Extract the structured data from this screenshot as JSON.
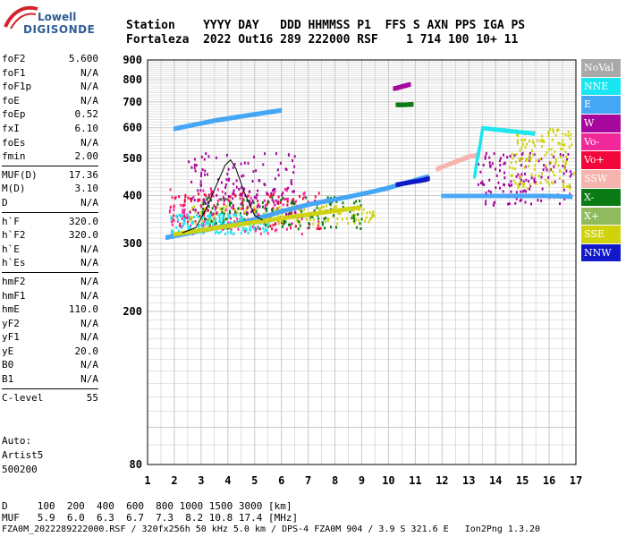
{
  "logo": {
    "line1": "Lowell",
    "line2": "DIGISONDE"
  },
  "header": {
    "row1": "Station    YYYY DAY   DDD HHMMSS P1  FFS S AXN PPS IGA PS",
    "row2": "Fortaleza  2022 Out16 289 222000 RSF    1 714 100 10+ 11"
  },
  "params": {
    "group1": [
      {
        "name": "foF2",
        "value": "5.600"
      },
      {
        "name": "foF1",
        "value": "N/A"
      },
      {
        "name": "foF1p",
        "value": "N/A"
      },
      {
        "name": "foE",
        "value": "N/A"
      },
      {
        "name": "foEp",
        "value": "0.52"
      },
      {
        "name": "fxI",
        "value": "6.10"
      },
      {
        "name": "foEs",
        "value": "N/A"
      },
      {
        "name": "fmin",
        "value": "2.00"
      }
    ],
    "group2": [
      {
        "name": "MUF(D)",
        "value": "17.36"
      },
      {
        "name": "M(D)",
        "value": "3.10"
      },
      {
        "name": "D",
        "value": "N/A"
      }
    ],
    "group3": [
      {
        "name": "h`F",
        "value": "320.0"
      },
      {
        "name": "h`F2",
        "value": "320.0"
      },
      {
        "name": "h`E",
        "value": "N/A"
      },
      {
        "name": "h`Es",
        "value": "N/A"
      }
    ],
    "group4": [
      {
        "name": "hmF2",
        "value": "N/A"
      },
      {
        "name": "hmF1",
        "value": "N/A"
      },
      {
        "name": "hmE",
        "value": "110.0"
      },
      {
        "name": "yF2",
        "value": "N/A"
      },
      {
        "name": "yF1",
        "value": "N/A"
      },
      {
        "name": "yE",
        "value": "20.0"
      },
      {
        "name": "B0",
        "value": "N/A"
      },
      {
        "name": "B1",
        "value": "N/A"
      }
    ],
    "group5": [
      {
        "name": "C-level",
        "value": "55"
      }
    ]
  },
  "auto": {
    "line1": "Auto:",
    "line2": "Artist5",
    "line3": "500200"
  },
  "legend": [
    {
      "label": "NoVal",
      "color": "#a9a9a9"
    },
    {
      "label": "NNE",
      "color": "#19e6f0"
    },
    {
      "label": "E",
      "color": "#45a6f5"
    },
    {
      "label": "W",
      "color": "#a6089e"
    },
    {
      "label": "Vo-",
      "color": "#f0289a"
    },
    {
      "label": "Vo+",
      "color": "#f2073a"
    },
    {
      "label": "SSW",
      "color": "#f5b4ad"
    },
    {
      "label": "X-",
      "color": "#0a7a14"
    },
    {
      "label": "X+",
      "color": "#8fba5d"
    },
    {
      "label": "SSE",
      "color": "#d0d20c"
    },
    {
      "label": "NNW",
      "color": "#1119c8"
    }
  ],
  "bottom": {
    "d_row": "D     100  200  400  600  800 1000 1500 3000 [km]",
    "muf_row": "MUF   5.9  6.0  6.3  6.7  7.3  8.2 10.8 17.4 [MHz]",
    "footer": "FZA0M_2022289222000.RSF / 320fx256h 50 kHz 5.0 km / DPS-4 FZA0M 904 / 3.9 S 321.6 E   Ion2Png 1.3.20"
  },
  "chart_data": {
    "type": "scatter",
    "xlim": [
      1,
      17
    ],
    "ylim": [
      80,
      900
    ],
    "y_scale": "log",
    "x_ticks": [
      1,
      2,
      3,
      4,
      5,
      6,
      7,
      8,
      9,
      10,
      11,
      12,
      13,
      14,
      15,
      16,
      17
    ],
    "y_ticks": [
      80,
      200,
      300,
      400,
      500,
      600,
      700,
      800,
      900
    ],
    "grid": true,
    "traces": [
      {
        "color": "#45a6f5",
        "points": [
          [
            1.7,
            312
          ],
          [
            2.0,
            315
          ],
          [
            2.5,
            320
          ],
          [
            3.0,
            325
          ],
          [
            3.5,
            330
          ],
          [
            4.0,
            335
          ],
          [
            4.5,
            340
          ],
          [
            5.0,
            348
          ],
          [
            5.5,
            356
          ],
          [
            6.0,
            365
          ],
          [
            6.5,
            372
          ],
          [
            7.0,
            380
          ],
          [
            7.5,
            386
          ],
          [
            8.0,
            392
          ],
          [
            8.5,
            398
          ],
          [
            9.0,
            405
          ],
          [
            9.5,
            412
          ],
          [
            10.0,
            420
          ],
          [
            10.5,
            430
          ],
          [
            11.0,
            440
          ],
          [
            11.5,
            450
          ]
        ]
      },
      {
        "color": "#45a6f5",
        "points": [
          [
            2.0,
            598
          ],
          [
            2.5,
            608
          ],
          [
            3.0,
            618
          ],
          [
            3.5,
            628
          ],
          [
            4.0,
            636
          ],
          [
            4.5,
            644
          ],
          [
            5.0,
            652
          ],
          [
            5.5,
            660
          ],
          [
            6.0,
            668
          ]
        ]
      },
      {
        "color": "#45a6f5",
        "points": [
          [
            12.0,
            400
          ],
          [
            13.0,
            400
          ],
          [
            14.0,
            400
          ],
          [
            15.0,
            400
          ],
          [
            16.0,
            400
          ],
          [
            16.9,
            398
          ]
        ]
      },
      {
        "color": "#d0d20c",
        "points": [
          [
            2.0,
            318
          ],
          [
            3.0,
            326
          ],
          [
            4.0,
            334
          ],
          [
            5.0,
            342
          ],
          [
            6.0,
            350
          ],
          [
            7.0,
            358
          ],
          [
            8.0,
            366
          ],
          [
            9.0,
            374
          ]
        ]
      },
      {
        "color": "#1119c8",
        "points": [
          [
            10.3,
            428
          ],
          [
            10.8,
            434
          ],
          [
            11.3,
            440
          ],
          [
            11.5,
            444
          ]
        ]
      },
      {
        "color": "#f5b4ad",
        "points": [
          [
            11.8,
            470
          ],
          [
            12.2,
            482
          ],
          [
            12.6,
            494
          ],
          [
            13.0,
            506
          ],
          [
            13.4,
            512
          ]
        ]
      },
      {
        "color": "#19e6f0",
        "points": [
          [
            13.2,
            450
          ],
          [
            13.3,
            500
          ],
          [
            13.4,
            540
          ],
          [
            13.5,
            600
          ],
          [
            14.5,
            590
          ],
          [
            15.5,
            580
          ]
        ]
      },
      {
        "color": "#a6089e",
        "points": [
          [
            10.2,
            760
          ],
          [
            10.5,
            770
          ],
          [
            10.8,
            780
          ]
        ]
      },
      {
        "color": "#0a7a14",
        "points": [
          [
            10.3,
            690
          ],
          [
            10.6,
            690
          ],
          [
            10.9,
            692
          ]
        ]
      }
    ],
    "clusters": [
      {
        "color": "#a6089e",
        "x": [
          13.3,
          16.9
        ],
        "y": [
          380,
          520
        ]
      },
      {
        "color": "#f0289a",
        "x": [
          1.8,
          7.0
        ],
        "y": [
          320,
          420
        ]
      },
      {
        "color": "#f2073a",
        "x": [
          1.8,
          7.5
        ],
        "y": [
          330,
          410
        ]
      },
      {
        "color": "#d0d20c",
        "x": [
          2.5,
          9.5
        ],
        "y": [
          340,
          380
        ]
      },
      {
        "color": "#a6089e",
        "x": [
          2.5,
          6.5
        ],
        "y": [
          360,
          520
        ]
      },
      {
        "color": "#d0d20c",
        "x": [
          14.5,
          16.9
        ],
        "y": [
          420,
          600
        ]
      },
      {
        "color": "#0a7a14",
        "x": [
          3.0,
          9.0
        ],
        "y": [
          330,
          400
        ]
      },
      {
        "color": "#19e6f0",
        "x": [
          1.8,
          5.5
        ],
        "y": [
          320,
          360
        ]
      }
    ],
    "profile_line": {
      "color": "#000000",
      "points": [
        [
          2.3,
          320
        ],
        [
          2.8,
          330
        ],
        [
          3.2,
          370
        ],
        [
          3.6,
          430
        ],
        [
          3.9,
          480
        ],
        [
          4.1,
          495
        ],
        [
          4.3,
          470
        ],
        [
          4.6,
          410
        ],
        [
          5.0,
          355
        ],
        [
          5.3,
          345
        ]
      ]
    }
  }
}
